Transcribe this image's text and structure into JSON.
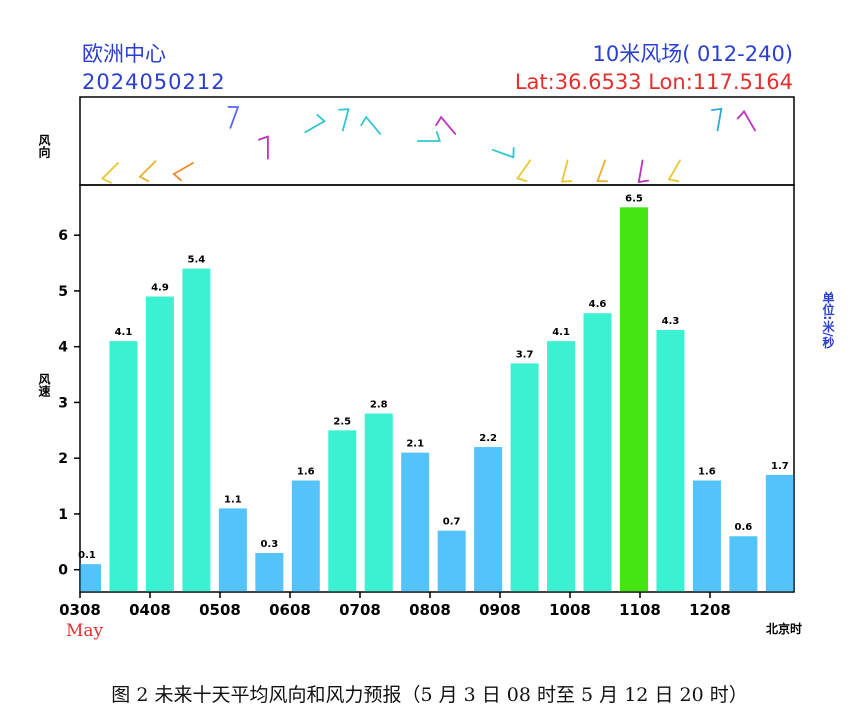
{
  "header": {
    "left_title": "欧洲中心",
    "left_subtitle": "2024050212",
    "right_title": "10米风场( 012-240)",
    "right_coords": "Lat:36.6533 Lon:117.5164"
  },
  "labels": {
    "wind_direction_axis": "风向",
    "wind_speed_axis": "风速",
    "unit": "单位:米/秒",
    "time_zone": "北京时",
    "month": "May"
  },
  "caption": "图 2 未来十天平均风向和风力预报（5 月 3 日 08 时至 5 月 12 日 20 时）",
  "colors": {
    "cyan": "#3cf0d2",
    "blue": "#55c3fb",
    "green": "#45e514",
    "header_blue": "#2b3fd0",
    "header_red": "#e0312f"
  },
  "chart_data": {
    "type": "bar",
    "x_tick_labels": [
      "0308",
      "0408",
      "0508",
      "0608",
      "0708",
      "0808",
      "0908",
      "1008",
      "1108",
      "1208"
    ],
    "y_ticks": [
      0,
      1,
      2,
      3,
      4,
      5,
      6
    ],
    "ylim": [
      -0.4,
      6.9
    ],
    "values": [
      0.1,
      4.1,
      4.9,
      5.4,
      1.1,
      0.3,
      1.6,
      2.5,
      2.8,
      2.1,
      0.7,
      2.2,
      3.7,
      4.1,
      4.6,
      6.5,
      4.3,
      1.6,
      0.6,
      1.7
    ],
    "value_labels": [
      "0.1",
      "4.1",
      "4.9",
      "5.4",
      "1.1",
      "0.3",
      "1.6",
      "2.5",
      "2.8",
      "2.1",
      "0.7",
      "2.2",
      "3.7",
      "4.1",
      "4.6",
      "6.5",
      "4.3",
      "1.6",
      "0.6",
      "1.7"
    ],
    "bar_colors": [
      "blue",
      "cyan",
      "cyan",
      "cyan",
      "blue",
      "blue",
      "blue",
      "cyan",
      "cyan",
      "blue",
      "blue",
      "blue",
      "cyan",
      "cyan",
      "cyan",
      "green",
      "cyan",
      "blue",
      "blue",
      "blue"
    ],
    "wind_barbs": [
      {
        "dir_deg": 225,
        "color": "#e8c830",
        "y": 0.75
      },
      {
        "dir_deg": 225,
        "color": "#e8b030",
        "y": 0.73
      },
      {
        "dir_deg": 240,
        "color": "#ea8a28",
        "y": 0.75
      },
      {
        "dir_deg": 20,
        "color": "#5a64ff",
        "y": 0.35
      },
      {
        "dir_deg": 0,
        "color": "#c030c0",
        "y": 0.7
      },
      {
        "dir_deg": 60,
        "color": "#30c8d0",
        "y": 0.4
      },
      {
        "dir_deg": 15,
        "color": "#30c8d0",
        "y": 0.38
      },
      {
        "dir_deg": 320,
        "color": "#30c8d0",
        "y": 0.42
      },
      {
        "dir_deg": 90,
        "color": "#30c8d0",
        "y": 0.5
      },
      {
        "dir_deg": 320,
        "color": "#c030c0",
        "y": 0.42
      },
      {
        "dir_deg": 110,
        "color": "#30c8d0",
        "y": 0.6
      },
      {
        "dir_deg": 215,
        "color": "#e8c830",
        "y": 0.72
      },
      {
        "dir_deg": 195,
        "color": "#e8c830",
        "y": 0.72
      },
      {
        "dir_deg": 200,
        "color": "#e8b030",
        "y": 0.72
      },
      {
        "dir_deg": 190,
        "color": "#c030c0",
        "y": 0.72
      },
      {
        "dir_deg": 210,
        "color": "#e8c830",
        "y": 0.72
      },
      {
        "dir_deg": 10,
        "color": "#30a8d8",
        "y": 0.38
      },
      {
        "dir_deg": 330,
        "color": "#c030c0",
        "y": 0.38
      }
    ]
  }
}
